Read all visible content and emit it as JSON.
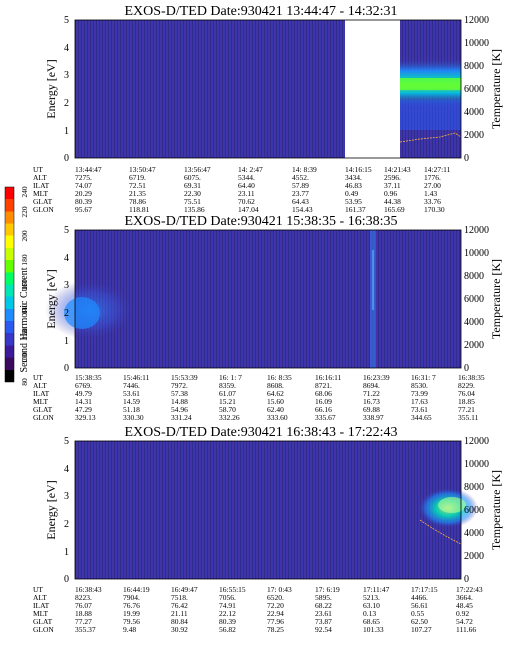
{
  "chart_data": [
    {
      "type": "heatmap",
      "title": "EXOS-D/TED   Date:930421  13:44:47 - 14:32:31",
      "ylabel": "Energy [eV]",
      "y2label": "Temperature [K]",
      "ylim": [
        0,
        5
      ],
      "y2lim": [
        0,
        12000
      ],
      "yticks": [
        "0",
        "1",
        "2",
        "3",
        "4",
        "5"
      ],
      "y2ticks": [
        "0",
        "2000",
        "4000",
        "6000",
        "8000",
        "10000",
        "12000"
      ],
      "data_gap": [
        0.7,
        0.84
      ],
      "emission_bands": [
        {
          "x0": 0.84,
          "x1": 1.0,
          "e0": 1.3,
          "e1": 2.7,
          "level": "moderate"
        },
        {
          "x0": 0.84,
          "x1": 1.0,
          "e0": 1.75,
          "e1": 2.25,
          "level": "strong"
        }
      ],
      "temperature": {
        "x": [
          0.84,
          0.88,
          0.92,
          0.96,
          1.0
        ],
        "y": [
          1200,
          1500,
          1700,
          2100,
          1600
        ]
      },
      "ephemeris": {
        "labels": [
          "UT",
          "ALT",
          "ILAT",
          "MLT",
          "GLAT",
          "GLON"
        ],
        "columns": [
          [
            "13:44:47",
            "7275.",
            "74.07",
            "20.29",
            "80.39",
            "95.67"
          ],
          [
            "13:50:47",
            "6719.",
            "72.51",
            "21.35",
            "78.86",
            "118.81"
          ],
          [
            "13:56:47",
            "6075.",
            "69.31",
            "22.30",
            "75.51",
            "135.86"
          ],
          [
            "14: 2:47",
            "5344.",
            "64.40",
            "23.11",
            "70.62",
            "147.04"
          ],
          [
            "14: 8:39",
            "4552.",
            "57.89",
            "23.77",
            "64.43",
            "154.43"
          ],
          [
            "14:16:15",
            "3434.",
            "46.83",
            "0.49",
            "53.95",
            "161.37"
          ],
          [
            "14:21:43",
            "2596.",
            "37.11",
            "0.96",
            "44.38",
            "165.69"
          ],
          [
            "14:27:11",
            "1776.",
            "27.00",
            "1.43",
            "33.76",
            "170.30"
          ]
        ]
      }
    },
    {
      "type": "heatmap",
      "title": "EXOS-D/TED   Date:930421  15:38:35 - 16:38:35",
      "ylabel": "Energy [eV]",
      "y2label": "Temperature [K]",
      "ylim": [
        0,
        5
      ],
      "y2lim": [
        0,
        12000
      ],
      "yticks": [
        "0",
        "1",
        "2",
        "3",
        "4",
        "5"
      ],
      "y2ticks": [
        "0",
        "2000",
        "4000",
        "6000",
        "8000",
        "10000",
        "12000"
      ],
      "emission_bands": [
        {
          "x0": 0.0,
          "x1": 0.18,
          "e0": 1.2,
          "e1": 3.0,
          "level": "weak"
        },
        {
          "x0": 0.0,
          "x1": 0.08,
          "e0": 1.6,
          "e1": 2.6,
          "level": "moderate"
        },
        {
          "x0": 0.775,
          "x1": 0.79,
          "e0": 0.0,
          "e1": 5.0,
          "level": "weak"
        }
      ],
      "ephemeris": {
        "labels": [
          "UT",
          "ALT",
          "ILAT",
          "MLT",
          "GLAT",
          "GLON"
        ],
        "columns": [
          [
            "15:38:35",
            "6769.",
            "49.79",
            "14.31",
            "47.29",
            "329.13"
          ],
          [
            "15:46:11",
            "7446.",
            "53.61",
            "14.59",
            "51.18",
            "330.30"
          ],
          [
            "15:53:39",
            "7972.",
            "57.38",
            "14.88",
            "54.96",
            "331.24"
          ],
          [
            "16: 1: 7",
            "8359.",
            "61.07",
            "15.21",
            "58.70",
            "332.26"
          ],
          [
            "16: 8:35",
            "8608.",
            "64.62",
            "15.60",
            "62.40",
            "333.60"
          ],
          [
            "16:16:11",
            "8721.",
            "68.06",
            "16.09",
            "66.16",
            "335.67"
          ],
          [
            "16:23:39",
            "8694.",
            "71.22",
            "16.73",
            "69.88",
            "338.97"
          ],
          [
            "16:31: 7",
            "8530.",
            "73.99",
            "17.63",
            "73.61",
            "344.65"
          ],
          [
            "16:38:35",
            "8229.",
            "76.04",
            "18.85",
            "77.21",
            "355.11"
          ]
        ]
      }
    },
    {
      "type": "heatmap",
      "title": "EXOS-D/TED   Date:930421  16:38:43 - 17:22:43",
      "ylabel": "Energy [eV]",
      "y2label": "Temperature [K]",
      "ylim": [
        0,
        5
      ],
      "y2lim": [
        0,
        12000
      ],
      "yticks": [
        "0",
        "1",
        "2",
        "3",
        "4",
        "5"
      ],
      "y2ticks": [
        "0",
        "2000",
        "4000",
        "6000",
        "8000",
        "10000",
        "12000"
      ],
      "emission_bands": [
        {
          "x0": 0.89,
          "x1": 1.0,
          "e0": 1.9,
          "e1": 3.1,
          "level": "moderate"
        },
        {
          "x0": 0.93,
          "x1": 1.0,
          "e0": 2.2,
          "e1": 2.8,
          "level": "strong"
        }
      ],
      "temperature": {
        "x": [
          0.89,
          0.92,
          0.95,
          0.98,
          1.0
        ],
        "y": [
          5200,
          4400,
          3600,
          3000,
          2700
        ]
      },
      "ephemeris": {
        "labels": [
          "UT",
          "ALT",
          "ILAT",
          "MLT",
          "GLAT",
          "GLON"
        ],
        "columns": [
          [
            "16:38:43",
            "8223.",
            "76.07",
            "18.88",
            "77.27",
            "355.37"
          ],
          [
            "16:44:19",
            "7904.",
            "76.76",
            "19.99",
            "79.56",
            "9.48"
          ],
          [
            "16:49:47",
            "7518.",
            "76.42",
            "21.11",
            "80.84",
            "30.92"
          ],
          [
            "16:55:15",
            "7056.",
            "74.91",
            "22.12",
            "80.39",
            "56.82"
          ],
          [
            "17: 0:43",
            "6520.",
            "72.20",
            "22.94",
            "77.96",
            "78.25"
          ],
          [
            "17: 6:19",
            "5895.",
            "68.22",
            "23.61",
            "73.87",
            "92.54"
          ],
          [
            "17:11:47",
            "5213.",
            "63.10",
            "0.13",
            "68.65",
            "101.33"
          ],
          [
            "17:17:15",
            "4466.",
            "56.61",
            "0.55",
            "62.50",
            "107.27"
          ],
          [
            "17:22:43",
            "3664.",
            "48.45",
            "0.92",
            "54.72",
            "111.66"
          ]
        ]
      }
    }
  ],
  "colorbar": {
    "label": "Second Harmonic Current",
    "range": [
      80,
      240
    ],
    "ticks": [
      "80",
      "100",
      "120",
      "140",
      "160",
      "180",
      "200",
      "220",
      "240"
    ],
    "colors": [
      "#000000",
      "#3a0a60",
      "#3d1a9a",
      "#3838c8",
      "#2a5af0",
      "#1e8cff",
      "#00c8e6",
      "#00e6b4",
      "#00ff64",
      "#64ff00",
      "#c8ff00",
      "#ffff00",
      "#ffc800",
      "#ff8c00",
      "#ff4000",
      "#ff0000"
    ]
  }
}
